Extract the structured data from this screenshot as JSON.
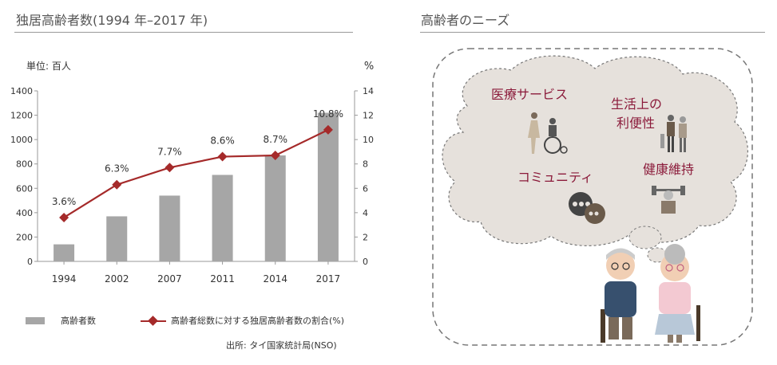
{
  "left_title": "独居高齢者数(1994 年–2017 年)",
  "right_title": "高齢者のニーズ",
  "source": "出所: タイ国家統計局(NSO)",
  "colors": {
    "bar": "#a6a6a6",
    "line": "#a52a2a",
    "needs_text": "#8b1a3a",
    "bubble": "#e6e1dc"
  },
  "chart_data": {
    "type": "bar",
    "categories": [
      "1994",
      "2002",
      "2007",
      "2011",
      "2014",
      "2017"
    ],
    "series": [
      {
        "name": "高齢者数",
        "type": "bar",
        "axis": "left",
        "values": [
          140,
          370,
          540,
          710,
          870,
          1220
        ]
      },
      {
        "name": "高齢者総数に対する独居高齢者数の割合(%)",
        "type": "line",
        "axis": "right",
        "values": [
          3.6,
          6.3,
          7.7,
          8.6,
          8.7,
          10.8
        ]
      }
    ],
    "data_labels": [
      "3.6%",
      "6.3%",
      "7.7%",
      "8.6%",
      "8.7%",
      "10.8%"
    ],
    "y_left": {
      "label": "単位: 百人",
      "range": [
        0,
        1400
      ],
      "ticks": [
        "0",
        "200",
        "400",
        "600",
        "800",
        "1000",
        "1200",
        "1400"
      ]
    },
    "y_right": {
      "label": "%",
      "range": [
        0,
        14
      ],
      "ticks": [
        "0",
        "2",
        "4",
        "6",
        "8",
        "10",
        "12",
        "14"
      ]
    },
    "grid": false,
    "legend_position": "bottom"
  },
  "needs": {
    "items": [
      {
        "lines": [
          "医療サービス"
        ],
        "icon": "wheelchair-caregiver-icon"
      },
      {
        "lines": [
          "生活上の",
          "利便性"
        ],
        "icon": "elderly-couple-walking-icon"
      },
      {
        "lines": [
          "コミュニティ"
        ],
        "icon": "chat-bubbles-icon"
      },
      {
        "lines": [
          "健康維持"
        ],
        "icon": "dumbbell-exercise-icon"
      }
    ],
    "illustration": "elderly-couple-icon"
  }
}
